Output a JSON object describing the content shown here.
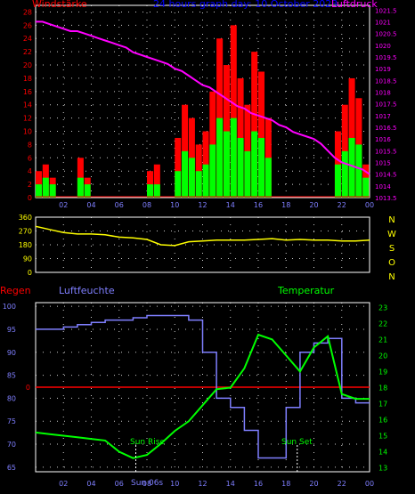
{
  "colors": {
    "background": "#000000",
    "windstaerke": "#ff0000",
    "wind_gust": "#ff0000",
    "wind_avg": "#00ff00",
    "luftdruck": "#ff00ff",
    "direction": "#ffff00",
    "regen": "#ff0000",
    "luftfeuchte": "#7f7fff",
    "temperatur": "#00ff00",
    "title": "#0000ff",
    "frame": "#ffffff",
    "grid": "#ffffff"
  },
  "chart_data": [
    {
      "type": "bar",
      "title": "24 hours graph day: 10.October 2023",
      "left_axis_label": "Windstärke",
      "right_axis_label": "Luftdruck",
      "x_ticks": [
        "02",
        "04",
        "06",
        "08",
        "10",
        "12",
        "14",
        "16",
        "18",
        "20",
        "22",
        "00"
      ],
      "y_left_ticks": [
        "0",
        "2",
        "4",
        "6",
        "8",
        "10",
        "12",
        "14",
        "16",
        "18",
        "20",
        "22",
        "24",
        "26",
        "28"
      ],
      "y_right_ticks": [
        "1013.5",
        "1014",
        "1014.5",
        "1015",
        "1015.5",
        "1016",
        "1016.5",
        "1017",
        "1017.5",
        "1018",
        "1018.5",
        "1019",
        "1019.5",
        "1020",
        "1020.5",
        "1021",
        "1021.5"
      ],
      "ylim_left": [
        0,
        29
      ],
      "ylim_right": [
        1013.5,
        1021.7
      ],
      "grid": true,
      "hours": [
        0.5,
        1,
        1.5,
        2,
        2.5,
        3,
        3.5,
        4,
        4.5,
        5,
        5.5,
        6,
        6.5,
        7,
        7.5,
        8,
        8.5,
        9,
        9.5,
        10,
        10.5,
        11,
        11.5,
        12,
        12.5,
        13,
        13.5,
        14,
        14.5,
        15,
        15.5,
        16,
        16.5,
        17,
        17.5,
        18,
        18.5,
        19,
        19.5,
        20,
        20.5,
        21,
        21.5,
        22,
        22.5,
        23,
        23.5,
        24
      ],
      "series": [
        {
          "name": "Windböe",
          "values": [
            4,
            5,
            3,
            0,
            0,
            0,
            6,
            3,
            0,
            0,
            0,
            0,
            0,
            0,
            0,
            0,
            4,
            5,
            0,
            0,
            9,
            14,
            12,
            8,
            10,
            16,
            24,
            20,
            26,
            18,
            14,
            22,
            19,
            12,
            0,
            0,
            0,
            0,
            0,
            0,
            0,
            0,
            0,
            10,
            14,
            18,
            15,
            5
          ]
        },
        {
          "name": "Windmittel",
          "values": [
            2,
            3,
            2,
            0,
            0,
            0,
            3,
            2,
            0,
            0,
            0,
            0,
            0,
            0,
            0,
            0,
            2,
            2,
            0,
            0,
            4,
            7,
            6,
            4,
            5,
            8,
            12,
            10,
            12,
            9,
            7,
            10,
            9,
            6,
            0,
            0,
            0,
            0,
            0,
            0,
            0,
            0,
            0,
            5,
            7,
            9,
            8,
            3
          ]
        },
        {
          "name": "Luftdruck",
          "values": [
            1021.0,
            1020.9,
            1020.8,
            1020.7,
            1020.6,
            1020.6,
            1020.5,
            1020.4,
            1020.3,
            1020.2,
            1020.1,
            1020.0,
            1019.9,
            1019.7,
            1019.6,
            1019.5,
            1019.4,
            1019.3,
            1019.2,
            1019.0,
            1018.9,
            1018.7,
            1018.5,
            1018.3,
            1018.2,
            1018.0,
            1017.8,
            1017.6,
            1017.4,
            1017.3,
            1017.1,
            1017.0,
            1016.9,
            1016.8,
            1016.6,
            1016.5,
            1016.3,
            1016.2,
            1016.1,
            1016.0,
            1015.8,
            1015.5,
            1015.2,
            1015.0,
            1014.9,
            1014.8,
            1014.7,
            1014.5
          ]
        }
      ]
    },
    {
      "type": "line",
      "x_ticks": [
        "02",
        "04",
        "06",
        "08",
        "10",
        "12",
        "14",
        "16",
        "18",
        "20",
        "22",
        "00"
      ],
      "y_left_ticks": [
        "0",
        "90",
        "180",
        "270",
        "360"
      ],
      "direction_labels": [
        "N",
        "W",
        "S",
        "O",
        "N"
      ],
      "ylim": [
        0,
        360
      ],
      "grid": true,
      "hours": [
        0,
        1,
        2,
        3,
        4,
        5,
        6,
        7,
        8,
        9,
        10,
        11,
        12,
        13,
        14,
        15,
        16,
        17,
        18,
        19,
        20,
        21,
        22,
        23,
        24
      ],
      "series": [
        {
          "name": "Windrichtung",
          "values": [
            300,
            280,
            260,
            250,
            250,
            245,
            230,
            225,
            215,
            180,
            175,
            200,
            205,
            210,
            210,
            210,
            215,
            220,
            210,
            215,
            210,
            210,
            205,
            205,
            210
          ]
        }
      ]
    },
    {
      "type": "line",
      "left_axis_label": "Regen",
      "left_axis_label_2": "Luftfeuchte",
      "right_axis_label": "Temperatur",
      "x_ticks": [
        "02",
        "04",
        "06",
        "08",
        "10",
        "12",
        "14",
        "16",
        "18",
        "20",
        "22",
        "00"
      ],
      "y_left_ticks": [
        "65",
        "70",
        "75",
        "80",
        "85",
        "90",
        "95",
        "100"
      ],
      "y_right_ticks": [
        "13",
        "14",
        "15",
        "16",
        "17",
        "18",
        "19",
        "20",
        "21",
        "22",
        "23"
      ],
      "rain_marker": "0",
      "ylim_left": [
        64,
        100.8
      ],
      "ylim_right": [
        12.75,
        23.3
      ],
      "grid": true,
      "annotations": [
        "Sun Rise",
        "Sun Set"
      ],
      "hours": [
        0,
        1,
        2,
        3,
        4,
        5,
        6,
        7,
        8,
        9,
        10,
        11,
        12,
        13,
        14,
        15,
        16,
        17,
        18,
        19,
        20,
        21,
        22,
        23,
        24
      ],
      "series": [
        {
          "name": "Luftfeuchte",
          "values": [
            95,
            95,
            95.5,
            96,
            96.5,
            97,
            97,
            97.5,
            98,
            98,
            98,
            97,
            90,
            80,
            78,
            73,
            67,
            67,
            78,
            90,
            92,
            93,
            80,
            79,
            79
          ]
        },
        {
          "name": "Temperatur",
          "values": [
            15.2,
            15.1,
            15.0,
            14.9,
            14.8,
            14.7,
            14.0,
            13.6,
            13.8,
            14.5,
            15.3,
            15.9,
            16.9,
            17.9,
            18.0,
            19.2,
            21.3,
            21.0,
            20.0,
            19.0,
            20.5,
            21.2,
            17.6,
            17.3,
            17.3
          ]
        }
      ]
    }
  ],
  "labels": {
    "windstaerke": "Windstärke",
    "title": "24 hours graph day: 10.October 2023",
    "luftdruck": "Luftdruck",
    "regen": "Regen",
    "luftfeuchte": "Luftfeuchte",
    "temperatur": "Temperatur",
    "sunrise": "Sun Rise",
    "sunset": "Sun Set"
  },
  "x_label_below": "Sun 06s"
}
